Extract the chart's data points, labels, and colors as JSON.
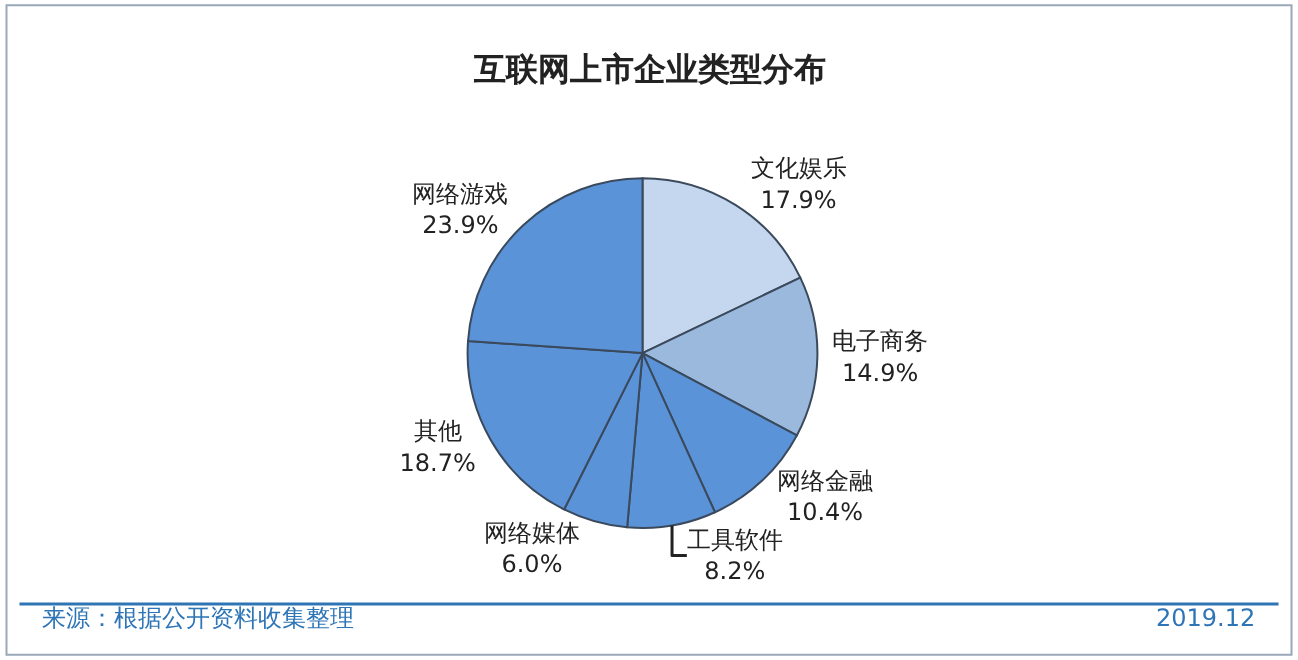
{
  "chart_data": {
    "type": "pie",
    "title": "互联网上市企业类型分布",
    "categories": [
      "文化娱乐",
      "电子商务",
      "网络金融",
      "工具软件",
      "网络媒体",
      "其他",
      "网络游戏"
    ],
    "values": [
      17.9,
      14.9,
      10.4,
      8.2,
      6.0,
      18.7,
      23.9
    ],
    "value_labels": [
      "17.9%",
      "14.9%",
      "10.4%",
      "8.2%",
      "6.0%",
      "18.7%",
      "23.9%"
    ],
    "colors": [
      "#c5d7ef",
      "#9bb9dd",
      "#5b93d9",
      "#5b93d9",
      "#5b93d9",
      "#5b93d9",
      "#5b93d9"
    ],
    "legend": false,
    "annotations": [
      "来源：根据公开资料收集整理",
      "2019.12"
    ]
  }
}
